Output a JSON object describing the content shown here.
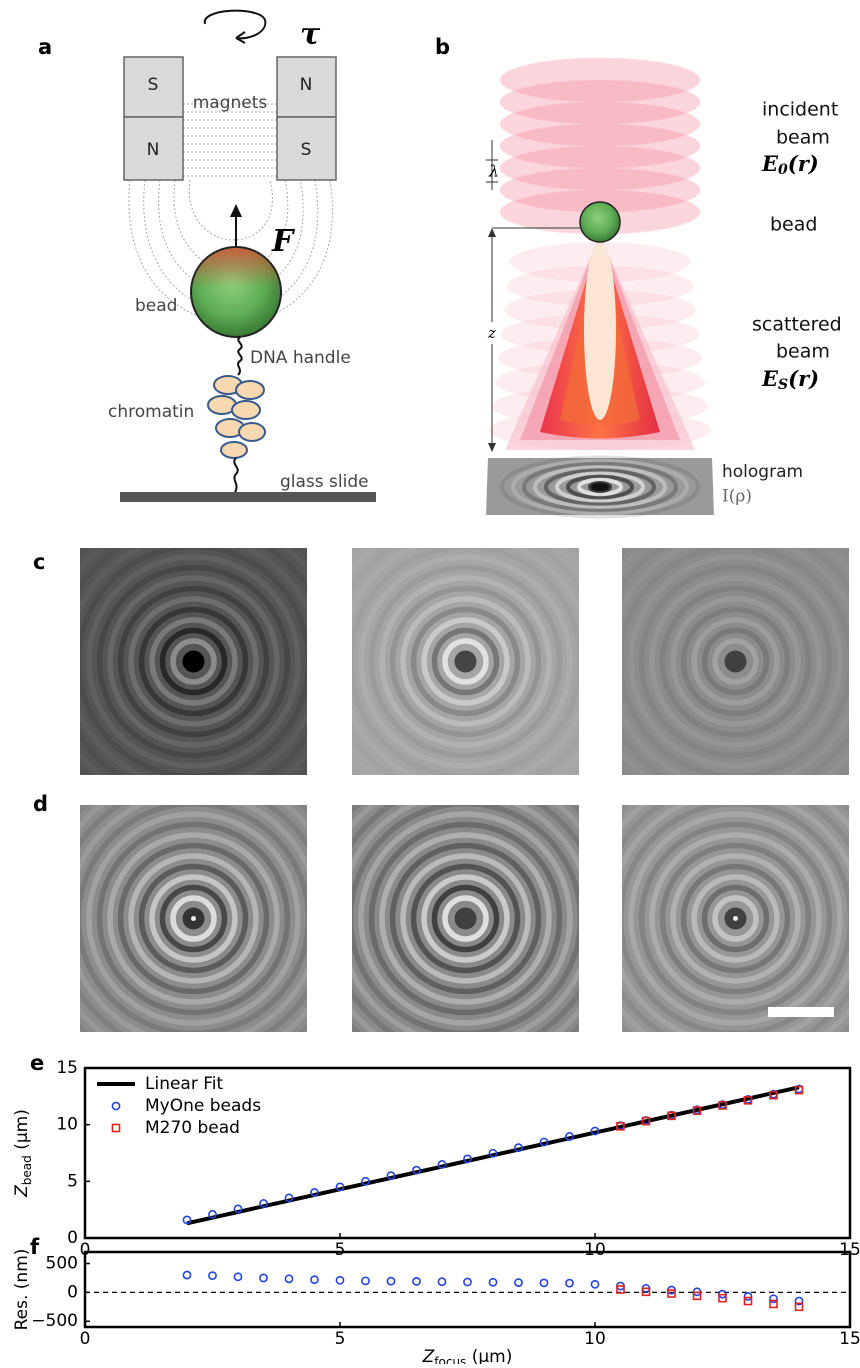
{
  "panels": {
    "a": {
      "label": "a",
      "tau": "τ",
      "magnets": "magnets",
      "poles": [
        "S",
        "N",
        "N",
        "S"
      ],
      "force": "F",
      "bead": "bead",
      "dna_handle": "DNA handle",
      "chromatin": "chromatin",
      "glass_slide": "glass slide"
    },
    "b": {
      "label": "b",
      "incident": [
        "incident",
        "beam"
      ],
      "incident_field": {
        "symbol": "E",
        "subscript": "0",
        "arg": "(r)"
      },
      "lambda": "λ",
      "bead": "bead",
      "z": "z",
      "scattered": [
        "scattered",
        "beam"
      ],
      "scattered_field": {
        "symbol": "E",
        "subscript": "S",
        "arg": "(r)"
      },
      "hologram": "hologram",
      "intensity": "I(ρ)"
    },
    "c": {
      "label": "c"
    },
    "d": {
      "label": "d"
    }
  },
  "chart_data": [
    {
      "type": "scatter",
      "panel": "e",
      "ylabel": {
        "symbol": "Z",
        "subscript": "bead",
        "unit": " (μm)"
      },
      "xlim": [
        0,
        15
      ],
      "xticks": [
        0,
        5,
        10,
        15
      ],
      "ylim": [
        0,
        15
      ],
      "yticks": [
        0,
        5,
        10,
        15
      ],
      "legend": "upper left",
      "series": [
        {
          "name": "Linear Fit",
          "type": "line",
          "color": "#000000",
          "x": [
            2,
            14
          ],
          "values": [
            1.3,
            13.3
          ]
        },
        {
          "name": "MyOne beads",
          "marker": "circle",
          "color": "#2244dd",
          "x": [
            2,
            2.5,
            3,
            3.5,
            4,
            4.5,
            5,
            5.5,
            6,
            6.5,
            7,
            7.5,
            8,
            8.5,
            9,
            9.5,
            10,
            10.5,
            11,
            11.5,
            12,
            12.5,
            13,
            13.5,
            14
          ],
          "values": [
            1.6,
            2.09,
            2.57,
            3.05,
            3.54,
            4.02,
            4.51,
            5.0,
            5.5,
            5.99,
            6.49,
            6.98,
            7.48,
            7.97,
            8.47,
            8.96,
            9.44,
            9.91,
            10.37,
            10.84,
            11.31,
            11.77,
            12.23,
            12.69,
            13.15
          ]
        },
        {
          "name": "M270 bead",
          "marker": "square",
          "color": "#dd2222",
          "x": [
            10.5,
            11,
            11.5,
            12,
            12.5,
            13,
            13.5,
            14
          ],
          "values": [
            9.85,
            10.31,
            10.78,
            11.24,
            11.7,
            12.15,
            12.6,
            13.05
          ]
        }
      ]
    },
    {
      "type": "scatter",
      "panel": "f",
      "ylabel": "Res. (nm)",
      "xlabel": {
        "symbol": "Z",
        "subscript": "focus",
        "unit": " (μm)"
      },
      "xlim": [
        0,
        15
      ],
      "xticks": [
        0,
        5,
        10,
        15
      ],
      "ylim": [
        -600,
        700
      ],
      "yticks": [
        {
          "value": -500,
          "label": "−500"
        },
        0,
        500
      ],
      "zero_line": true,
      "series": [
        {
          "marker": "circle",
          "color": "#2244dd",
          "x": [
            2,
            2.5,
            3,
            3.5,
            4,
            4.5,
            5,
            5.5,
            6,
            6.5,
            7,
            7.5,
            8,
            8.5,
            9,
            9.5,
            10,
            10.5,
            11,
            11.5,
            12,
            12.5,
            13,
            13.5,
            14
          ],
          "values": [
            300,
            290,
            270,
            250,
            235,
            220,
            210,
            200,
            195,
            190,
            185,
            180,
            175,
            170,
            165,
            160,
            140,
            110,
            70,
            40,
            10,
            -30,
            -70,
            -110,
            -150
          ]
        },
        {
          "marker": "square",
          "color": "#dd2222",
          "x": [
            10.5,
            11,
            11.5,
            12,
            12.5,
            13,
            13.5,
            14
          ],
          "values": [
            50,
            10,
            -20,
            -60,
            -100,
            -150,
            -200,
            -250
          ]
        }
      ]
    }
  ]
}
